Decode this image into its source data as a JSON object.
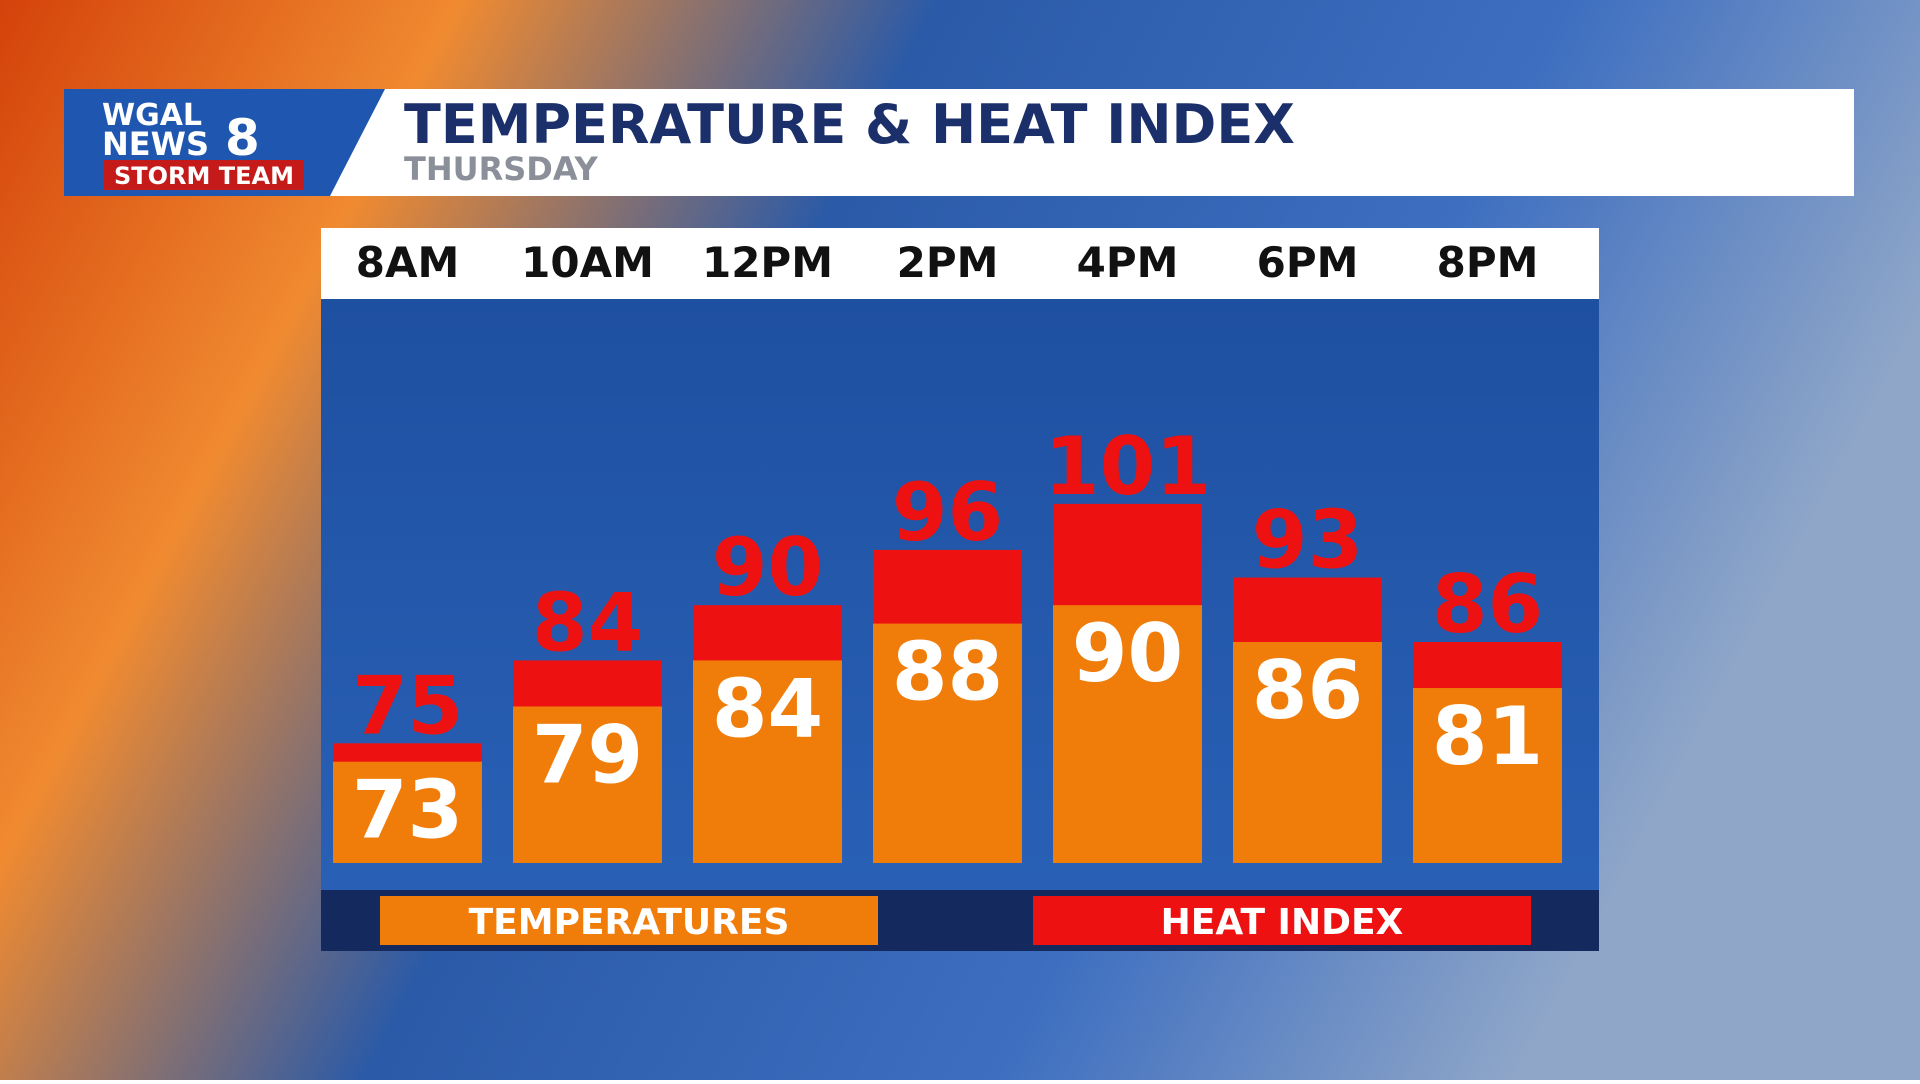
{
  "brand": {
    "station": "WGAL",
    "news": "NEWS",
    "channel": "8",
    "team": "STORM TEAM"
  },
  "chart_data": {
    "type": "bar",
    "title": "TEMPERATURE & HEAT INDEX",
    "subtitle": "THURSDAY",
    "categories": [
      "8AM",
      "10AM",
      "12PM",
      "2PM",
      "4PM",
      "6PM",
      "8PM"
    ],
    "series": [
      {
        "name": "TEMPERATURES",
        "color": "#f07d0a",
        "values": [
          73,
          79,
          84,
          88,
          90,
          86,
          81
        ]
      },
      {
        "name": "HEAT INDEX",
        "color": "#ee1111",
        "values": [
          75,
          84,
          90,
          96,
          101,
          93,
          86
        ]
      }
    ],
    "ylim": [
      62,
      110
    ]
  }
}
